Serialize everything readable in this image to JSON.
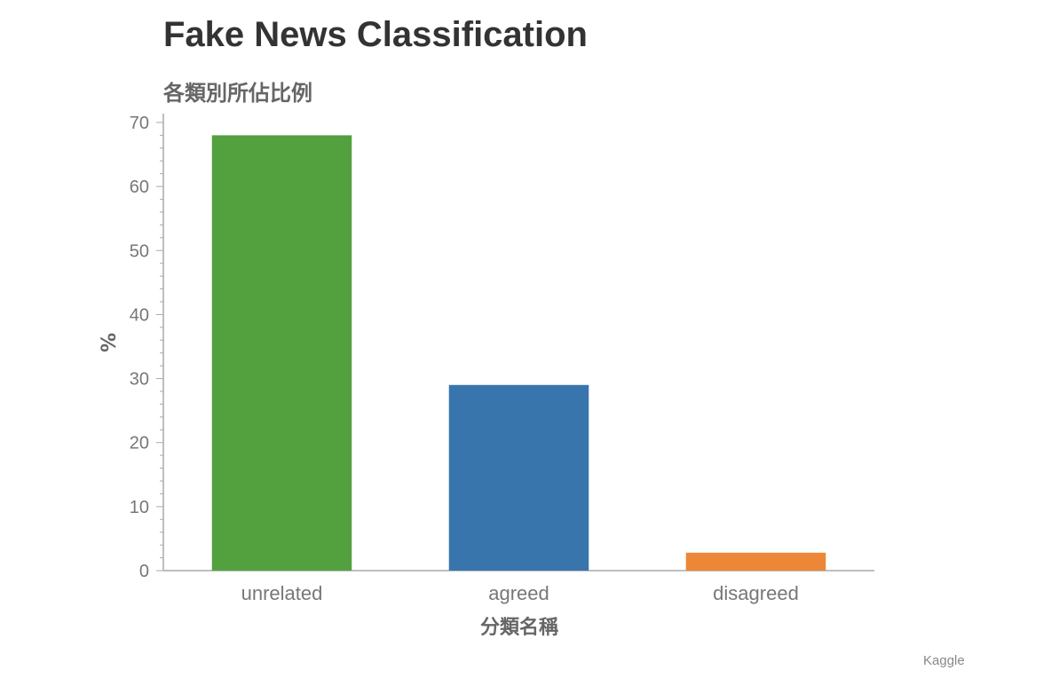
{
  "chart_data": {
    "type": "bar",
    "title": "Fake News Classification",
    "subtitle": "各類別所佔比例",
    "xlabel": "分類名稱",
    "ylabel": "%",
    "ylim": [
      0,
      70
    ],
    "yticks": [
      0,
      10,
      20,
      30,
      40,
      50,
      60,
      70
    ],
    "categories": [
      "unrelated",
      "agreed",
      "disagreed"
    ],
    "values": [
      68,
      29,
      2.8
    ],
    "colors": [
      "#53a03e",
      "#3975ad",
      "#ed8737"
    ],
    "grid": false,
    "legend": "none"
  },
  "credit": "Kaggle"
}
